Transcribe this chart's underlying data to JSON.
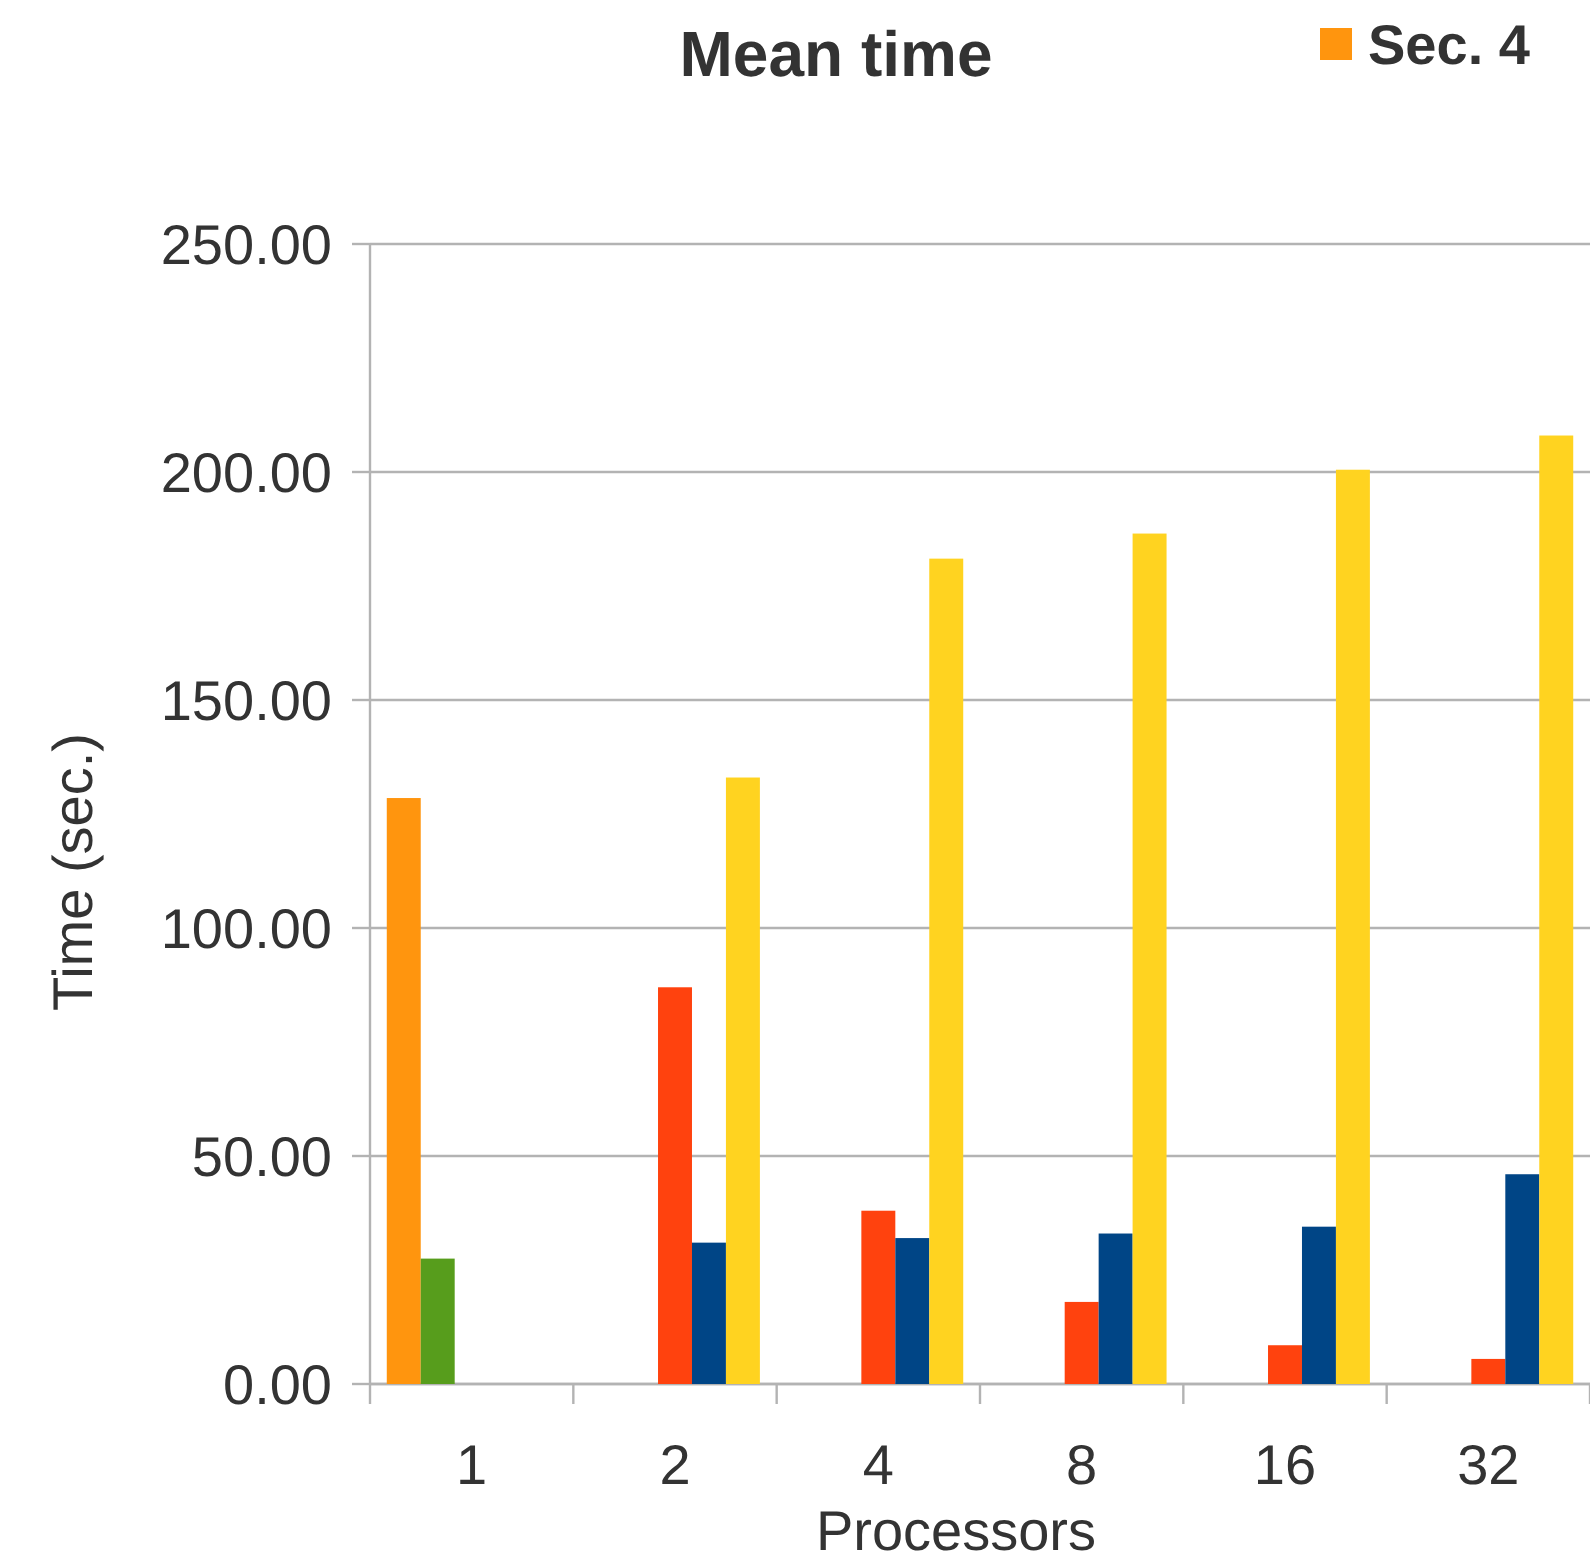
{
  "chart_data": {
    "type": "bar",
    "title": "Mean time",
    "xlabel": "Processors",
    "ylabel": "Time (sec.)",
    "categories": [
      "1",
      "2",
      "4",
      "8",
      "16",
      "32"
    ],
    "series": [
      {
        "name": "Sec. 4",
        "color": "#ff950e",
        "values": [
          128.5,
          null,
          null,
          null,
          null,
          null
        ]
      },
      {
        "color": "#579d1c",
        "values": [
          27.5,
          null,
          null,
          null,
          null,
          null
        ]
      },
      {
        "color": "#ff420e",
        "values": [
          null,
          87,
          38,
          18,
          8.5,
          5.5
        ]
      },
      {
        "color": "#004586",
        "values": [
          null,
          31,
          32,
          33,
          34.5,
          46
        ]
      },
      {
        "color": "#ffd320",
        "values": [
          null,
          133,
          181,
          186.5,
          200.5,
          208
        ]
      }
    ],
    "ylim": [
      0,
      250
    ],
    "yticks": [
      {
        "value": 0,
        "label": "0.00"
      },
      {
        "value": 50,
        "label": "50.00"
      },
      {
        "value": 100,
        "label": "100.00"
      },
      {
        "value": 150,
        "label": "150.00"
      },
      {
        "value": 200,
        "label": "200.00"
      },
      {
        "value": 250,
        "label": "250.00"
      }
    ],
    "grid": "y",
    "legend": "top right"
  }
}
